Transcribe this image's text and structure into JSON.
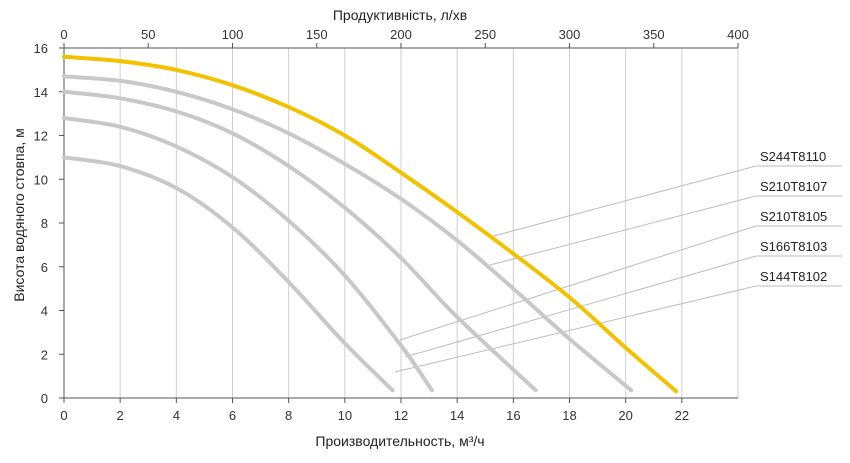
{
  "chart_data": {
    "type": "line",
    "top_axis": {
      "label": "Продуктивність, л/хв",
      "ticks": [
        0,
        50,
        100,
        150,
        200,
        250,
        300,
        350,
        400
      ]
    },
    "xlabel": "Производительность, м³/ч",
    "ylabel": "Висота водяного стовпа, м",
    "xlim": [
      0,
      24
    ],
    "ylim": [
      0,
      16
    ],
    "x_ticks": [
      0,
      2,
      4,
      6,
      8,
      10,
      12,
      14,
      16,
      18,
      20,
      22
    ],
    "y_ticks": [
      0,
      2,
      4,
      6,
      8,
      10,
      12,
      14,
      16
    ],
    "grid": "vertical",
    "series": [
      {
        "name": "S244T8110",
        "color": "#F2C200",
        "x": [
          0,
          2,
          4,
          6,
          8,
          10,
          12,
          14,
          16,
          18,
          20,
          21.8
        ],
        "y": [
          15.6,
          15.4,
          15.0,
          14.3,
          13.3,
          12.0,
          10.3,
          8.5,
          6.6,
          4.6,
          2.3,
          0.3
        ]
      },
      {
        "name": "S210T8107",
        "color": "#C8C8C8",
        "x": [
          0,
          2,
          4,
          6,
          8,
          10,
          12,
          14,
          16,
          18,
          20.2
        ],
        "y": [
          14.7,
          14.5,
          14.0,
          13.2,
          12.1,
          10.7,
          9.1,
          7.2,
          5.0,
          2.7,
          0.35
        ]
      },
      {
        "name": "S210T8105",
        "color": "#C8C8C8",
        "x": [
          0,
          2,
          4,
          6,
          8,
          10,
          12,
          14,
          16.8
        ],
        "y": [
          14.0,
          13.7,
          13.1,
          12.1,
          10.6,
          8.7,
          6.4,
          3.7,
          0.35
        ]
      },
      {
        "name": "S166T8103",
        "color": "#C8C8C8",
        "x": [
          0,
          2,
          4,
          6,
          8,
          10,
          12,
          13.1
        ],
        "y": [
          12.8,
          12.4,
          11.5,
          10.1,
          8.1,
          5.6,
          2.4,
          0.35
        ]
      },
      {
        "name": "S144T8102",
        "color": "#C8C8C8",
        "x": [
          0,
          2,
          4,
          6,
          8,
          10,
          11.7
        ],
        "y": [
          11.0,
          10.6,
          9.6,
          7.8,
          5.3,
          2.5,
          0.35
        ]
      }
    ]
  }
}
